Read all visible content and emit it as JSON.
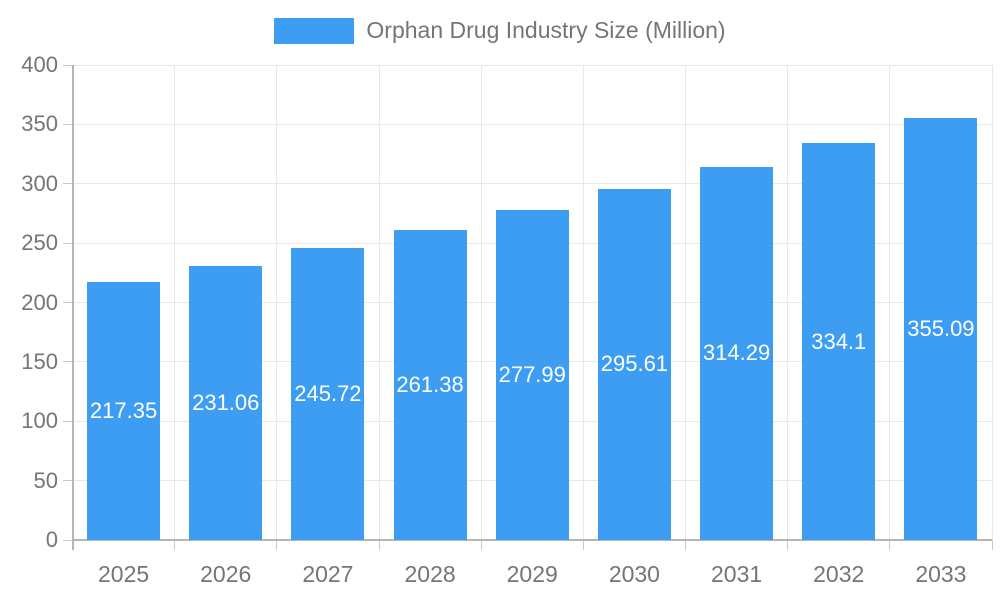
{
  "legend": {
    "label": "Orphan Drug Industry Size (Million)",
    "swatch_color": "#3D9DF3"
  },
  "chart_data": {
    "type": "bar",
    "title": "",
    "xlabel": "",
    "ylabel": "",
    "categories": [
      "2025",
      "2026",
      "2027",
      "2028",
      "2029",
      "2030",
      "2031",
      "2032",
      "2033"
    ],
    "series": [
      {
        "name": "Orphan Drug Industry Size (Million)",
        "values": [
          217.35,
          231.06,
          245.72,
          261.38,
          277.99,
          295.61,
          314.29,
          334.1,
          355.09
        ],
        "value_labels": [
          "217.35",
          "231.06",
          "245.72",
          "261.38",
          "277.99",
          "295.61",
          "314.29",
          "334.1",
          "355.09"
        ]
      }
    ],
    "ylim": [
      0,
      400
    ],
    "ytick_step": 50,
    "ytick_labels": [
      "0",
      "50",
      "100",
      "150",
      "200",
      "250",
      "300",
      "350",
      "400"
    ],
    "grid": true,
    "legend_position": "top-center",
    "colors": {
      "bar": "#3D9DF3",
      "value_label": "#ffffff",
      "axis_label": "#757575",
      "axis_line": "#b5b5b5",
      "gridline": "#e8e8e8",
      "tick": "#c9c9c9",
      "background": "#ffffff"
    }
  }
}
